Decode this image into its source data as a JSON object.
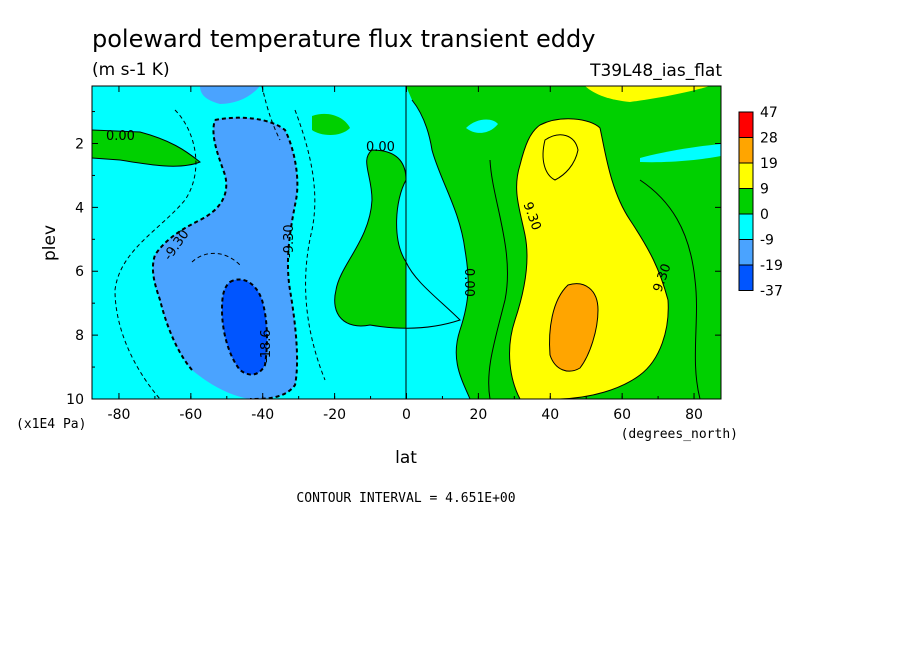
{
  "chart_data": {
    "type": "contour",
    "title": "poleward temperature flux transient eddy",
    "units": "(m s-1 K)",
    "dataset": "T39L48_ias_flat",
    "xlabel": "lat",
    "x_units": "(degrees_north)",
    "ylabel": "plev",
    "y_units": "(x1E4 Pa)",
    "xlim": [
      -87.5,
      87.5
    ],
    "ylim": [
      10,
      0.2
    ],
    "x_ticks": [
      "-80",
      "-60",
      "-40",
      "-20",
      "0",
      "20",
      "40",
      "60",
      "80"
    ],
    "y_ticks": [
      "2",
      "4",
      "6",
      "8",
      "10"
    ],
    "contour_interval_text": "CONTOUR INTERVAL = 4.651E+00",
    "contour_labels": [
      "0.00",
      "0.00",
      "-9.30",
      "-9.30",
      "-18.6",
      "0.00",
      "9.30",
      "9.30"
    ],
    "legend": {
      "levels": [
        "47",
        "28",
        "19",
        "9",
        "0",
        "-9",
        "-19",
        "-37"
      ],
      "colors": [
        "#ff0000",
        "#ffa500",
        "#ffff00",
        "#00d000",
        "#00ffff",
        "#4aa3ff",
        "#0055ff"
      ]
    }
  }
}
